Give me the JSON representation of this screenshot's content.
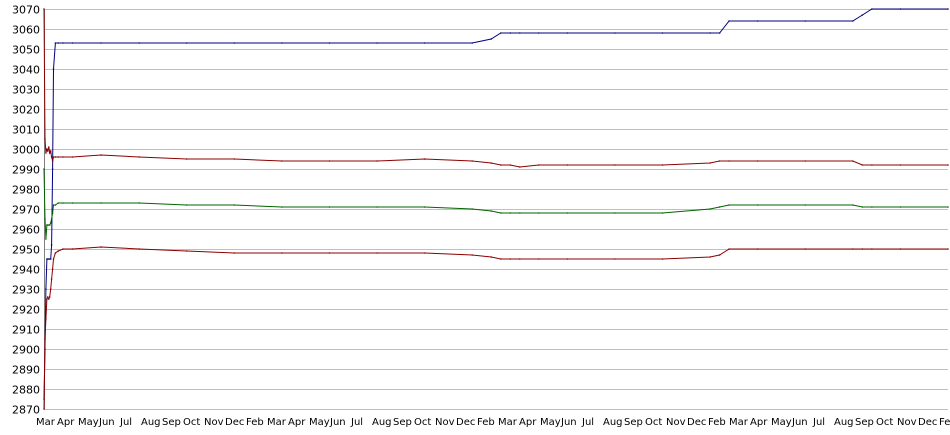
{
  "chart_data": {
    "type": "line",
    "title": "",
    "xlabel": "",
    "ylabel": "",
    "ylim": [
      2870,
      3070
    ],
    "yticks": [
      2870,
      2880,
      2890,
      2900,
      2910,
      2920,
      2930,
      2940,
      2950,
      2960,
      2970,
      2980,
      2990,
      3000,
      3010,
      3020,
      3030,
      3040,
      3050,
      3060,
      3070
    ],
    "grid": "horizontal",
    "legend": "none",
    "x_tick_labels": [
      "Mar",
      "Apr",
      "May",
      "Jun",
      "Jul",
      "Aug",
      "Sep",
      "Oct",
      "Nov",
      "Dec",
      "Feb"
    ],
    "x": [
      0,
      1,
      2,
      3,
      4,
      5,
      6,
      7,
      8,
      9,
      10,
      12,
      15,
      20,
      30,
      60,
      100,
      150,
      200,
      250,
      300,
      350,
      400,
      450,
      470,
      480,
      490,
      500,
      520,
      550,
      600,
      650,
      700,
      710,
      720,
      750,
      800,
      850,
      860,
      870,
      900,
      950
    ],
    "series": [
      {
        "color": "#000080",
        "values": [
          2875,
          2900,
          2930,
          2945,
          2945,
          2945,
          2945,
          2945,
          2952,
          2990,
          3040,
          3053,
          3053,
          3053,
          3053,
          3053,
          3053,
          3053,
          3053,
          3053,
          3053,
          3053,
          3053,
          3053,
          3055,
          3058,
          3058,
          3058,
          3058,
          3058,
          3058,
          3058,
          3058,
          3058,
          3064,
          3064,
          3064,
          3064,
          3067,
          3070,
          3070,
          3070
        ]
      },
      {
        "color": "#8b0000",
        "values": [
          3070,
          3005,
          2998,
          3000,
          2999,
          3001,
          2998,
          2999,
          2996,
          2994,
          2996,
          2996,
          2996,
          2996,
          2996,
          2997,
          2996,
          2995,
          2995,
          2994,
          2994,
          2994,
          2995,
          2994,
          2993,
          2992,
          2992,
          2991,
          2992,
          2992,
          2992,
          2992,
          2993,
          2994,
          2994,
          2994,
          2994,
          2994,
          2992,
          2992,
          2992,
          2992
        ]
      },
      {
        "color": "#006400",
        "values": [
          2990,
          2965,
          2955,
          2962,
          2962,
          2962,
          2962,
          2963,
          2965,
          2968,
          2972,
          2972,
          2973,
          2973,
          2973,
          2973,
          2973,
          2972,
          2972,
          2971,
          2971,
          2971,
          2971,
          2970,
          2969,
          2968,
          2968,
          2968,
          2968,
          2968,
          2968,
          2968,
          2970,
          2971,
          2972,
          2972,
          2972,
          2972,
          2971,
          2971,
          2971,
          2971
        ]
      },
      {
        "color": "#8b0000",
        "values": [
          2870,
          2905,
          2915,
          2925,
          2926,
          2925,
          2926,
          2930,
          2935,
          2940,
          2945,
          2948,
          2949,
          2950,
          2950,
          2951,
          2950,
          2949,
          2948,
          2948,
          2948,
          2948,
          2948,
          2947,
          2946,
          2945,
          2945,
          2945,
          2945,
          2945,
          2945,
          2945,
          2946,
          2947,
          2950,
          2950,
          2950,
          2950,
          2950,
          2950,
          2950,
          2950
        ]
      }
    ]
  }
}
